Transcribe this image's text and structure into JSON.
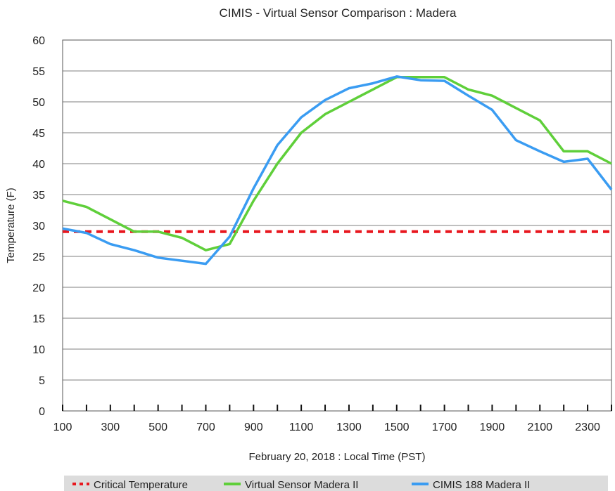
{
  "chart_data": {
    "type": "line",
    "title": "CIMIS - Virtual Sensor Comparison : Madera",
    "xlabel": "February 20, 2018 : Local Time (PST)",
    "ylabel": "Temperature (F)",
    "ylim": [
      0,
      60
    ],
    "yticks": [
      0,
      5,
      10,
      15,
      20,
      25,
      30,
      35,
      40,
      45,
      50,
      55,
      60
    ],
    "xlim": [
      100,
      2400
    ],
    "xticks": [
      100,
      300,
      500,
      700,
      900,
      1100,
      1300,
      1500,
      1700,
      1900,
      2100,
      2300
    ],
    "grid": true,
    "legend_position": "bottom",
    "x": [
      100,
      200,
      300,
      400,
      500,
      600,
      700,
      800,
      900,
      1000,
      1100,
      1200,
      1300,
      1400,
      1500,
      1600,
      1700,
      1800,
      1900,
      2000,
      2100,
      2200,
      2300,
      2400
    ],
    "series": [
      {
        "name": "Critical Temperature",
        "style": "dashed",
        "color": "#e8171e",
        "values": [
          29,
          29,
          29,
          29,
          29,
          29,
          29,
          29,
          29,
          29,
          29,
          29,
          29,
          29,
          29,
          29,
          29,
          29,
          29,
          29,
          29,
          29,
          29,
          29
        ]
      },
      {
        "name": "Virtual Sensor Madera II",
        "style": "solid",
        "color": "#5fcf3a",
        "values": [
          34,
          33,
          31,
          29,
          29,
          28,
          26,
          27,
          34,
          40,
          45,
          48,
          50,
          52,
          54,
          54,
          54,
          52,
          51,
          49,
          47,
          42,
          42,
          40
        ]
      },
      {
        "name": "CIMIS 188 Madera II",
        "style": "solid",
        "color": "#3a9cf2",
        "values": [
          29.5,
          28.8,
          27,
          26,
          24.8,
          24.3,
          23.8,
          28.2,
          36,
          43,
          47.5,
          50.3,
          52.2,
          53,
          54.1,
          53.5,
          53.4,
          51,
          48.7,
          43.8,
          42,
          40.3,
          40.8,
          35.8
        ]
      }
    ]
  }
}
